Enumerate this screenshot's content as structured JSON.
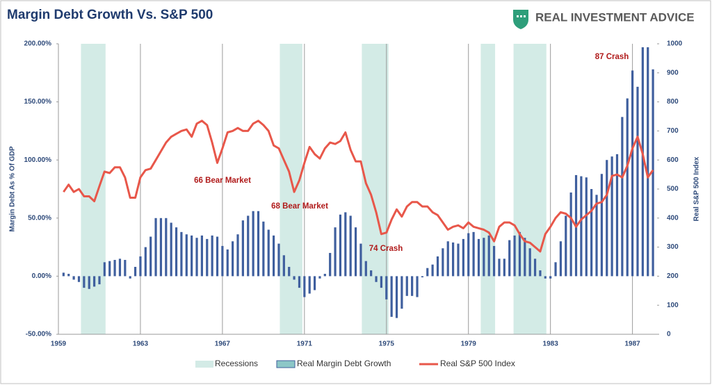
{
  "brand": "REAL INVESTMENT ADVICE",
  "chart_data": {
    "type": "combo",
    "title": "Margin Debt Growth Vs. S&P 500",
    "ylabel": "Margin Debt As % Of GDP",
    "y2label": "Real S&P 500 Index",
    "xlim": [
      1959,
      1988.2
    ],
    "xticks": [
      1959,
      1963,
      1967,
      1971,
      1975,
      1979,
      1983,
      1987
    ],
    "ylim": [
      -50,
      200
    ],
    "yticks": [
      {
        "value": -50,
        "label": "-50.00%"
      },
      {
        "value": 0,
        "label": "0.00%"
      },
      {
        "value": 50,
        "label": "50.00%"
      },
      {
        "value": 100,
        "label": "100.00%"
      },
      {
        "value": 150,
        "label": "150.00%"
      },
      {
        "value": 200,
        "label": "200.00%"
      }
    ],
    "y2lim": [
      0,
      1000
    ],
    "y2ticks": [
      0,
      100,
      200,
      300,
      400,
      500,
      600,
      700,
      800,
      900,
      1000
    ],
    "grid": "x",
    "legend": "bottom",
    "recessions": {
      "name": "Recessions",
      "color": "#d3ebe6",
      "ranges": [
        [
          1960.1,
          1961.3
        ],
        [
          1969.8,
          1970.9
        ],
        [
          1973.8,
          1975.1
        ],
        [
          1979.6,
          1980.3
        ],
        [
          1981.2,
          1982.8
        ]
      ]
    },
    "x": [
      1959.25,
      1959.5,
      1959.75,
      1960,
      1960.25,
      1960.5,
      1960.75,
      1961,
      1961.25,
      1961.5,
      1961.75,
      1962,
      1962.25,
      1962.5,
      1962.75,
      1963,
      1963.25,
      1963.5,
      1963.75,
      1964,
      1964.25,
      1964.5,
      1964.75,
      1965,
      1965.25,
      1965.5,
      1965.75,
      1966,
      1966.25,
      1966.5,
      1966.75,
      1967,
      1967.25,
      1967.5,
      1967.75,
      1968,
      1968.25,
      1968.5,
      1968.75,
      1969,
      1969.25,
      1969.5,
      1969.75,
      1970,
      1970.25,
      1970.5,
      1970.75,
      1971,
      1971.25,
      1971.5,
      1971.75,
      1972,
      1972.25,
      1972.5,
      1972.75,
      1973,
      1973.25,
      1973.5,
      1973.75,
      1974,
      1974.25,
      1974.5,
      1974.75,
      1975,
      1975.25,
      1975.5,
      1975.75,
      1976,
      1976.25,
      1976.5,
      1976.75,
      1977,
      1977.25,
      1977.5,
      1977.75,
      1978,
      1978.25,
      1978.5,
      1978.75,
      1979,
      1979.25,
      1979.5,
      1979.75,
      1980,
      1980.25,
      1980.5,
      1980.75,
      1981,
      1981.25,
      1981.5,
      1981.75,
      1982,
      1982.25,
      1982.5,
      1982.75,
      1983,
      1983.25,
      1983.5,
      1983.75,
      1984,
      1984.25,
      1984.5,
      1984.75,
      1985,
      1985.25,
      1985.5,
      1985.75,
      1986,
      1986.25,
      1986.5,
      1986.75,
      1987,
      1987.25,
      1987.5,
      1987.75,
      1988
    ],
    "series": [
      {
        "name": "Real Margin Debt Growth",
        "type": "bar",
        "color": "#3f5f9e",
        "values": [
          3,
          2,
          -3,
          -5,
          -10,
          -11,
          -9,
          -7,
          12,
          13,
          14,
          15,
          14,
          -2,
          8,
          17,
          25,
          34,
          50,
          50,
          50,
          46,
          42,
          38,
          36,
          35,
          33,
          35,
          32,
          35,
          34,
          26,
          23,
          30,
          36,
          48,
          52,
          56,
          56,
          47,
          40,
          35,
          28,
          18,
          8,
          -3,
          -10,
          -18,
          -15,
          -12,
          -2,
          2,
          20,
          42,
          53,
          55,
          52,
          42,
          28,
          13,
          5,
          -5,
          -10,
          -20,
          -35,
          -36,
          -28,
          -17,
          -17,
          -18,
          -1,
          7,
          10,
          17,
          24,
          30,
          29,
          28,
          32,
          37,
          38,
          32,
          33,
          35,
          26,
          15,
          15,
          31,
          35,
          38,
          33,
          24,
          15,
          5,
          -2,
          -2,
          12,
          30,
          52,
          72,
          87,
          86,
          85,
          75,
          70,
          88,
          100,
          103,
          105,
          137,
          153,
          177,
          163,
          197,
          197,
          178
        ]
      },
      {
        "name": "Real S&P 500 Index",
        "type": "line",
        "axis": "y2",
        "color": "#e8574a",
        "values": [
          490,
          515,
          490,
          500,
          475,
          475,
          458,
          510,
          560,
          555,
          575,
          575,
          540,
          470,
          470,
          540,
          565,
          570,
          600,
          630,
          660,
          680,
          690,
          700,
          705,
          680,
          725,
          735,
          720,
          660,
          590,
          640,
          695,
          700,
          710,
          700,
          700,
          725,
          735,
          720,
          700,
          650,
          640,
          600,
          560,
          490,
          530,
          590,
          645,
          620,
          605,
          640,
          660,
          655,
          665,
          695,
          635,
          595,
          595,
          520,
          480,
          420,
          345,
          350,
          395,
          430,
          405,
          440,
          455,
          455,
          440,
          440,
          420,
          410,
          385,
          360,
          370,
          375,
          365,
          385,
          370,
          365,
          360,
          350,
          320,
          370,
          385,
          385,
          375,
          345,
          320,
          315,
          300,
          285,
          345,
          370,
          400,
          420,
          415,
          400,
          370,
          395,
          410,
          425,
          450,
          455,
          480,
          545,
          550,
          540,
          580,
          640,
          680,
          620,
          540,
          565
        ]
      }
    ],
    "annotations": [
      "66 Bear Market",
      "68 Bear Market",
      "74 Crash",
      "87 Crash"
    ]
  }
}
